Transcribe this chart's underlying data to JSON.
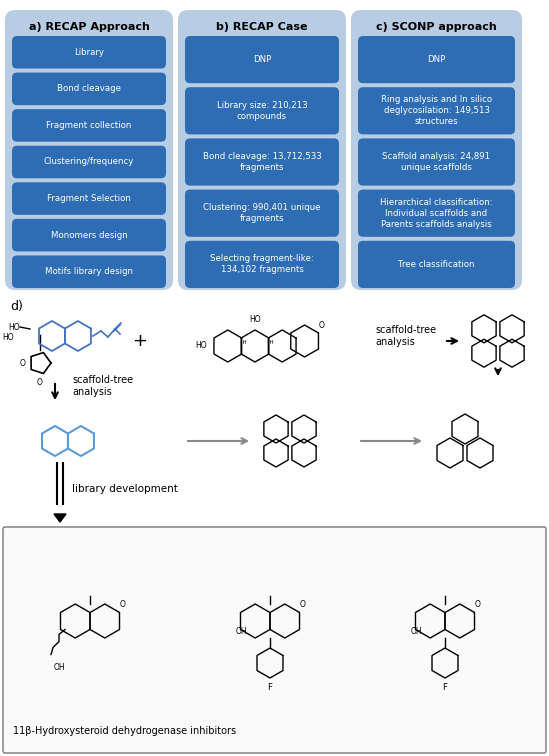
{
  "panel_bg": "#b8cce4",
  "box_bg": "#2e6db4",
  "box_text_color": "#ffffff",
  "panel_title_color": "#000000",
  "fig_bg": "#ffffff",
  "col_a_title": "a) RECAP Approach",
  "col_b_title": "b) RECAP Case",
  "col_c_title": "c) SCONP approach",
  "col_a_items": [
    "Library",
    "Bond cleavage",
    "Fragment collection",
    "Clustering/frequency",
    "Fragment Selection",
    "Monomers design",
    "Motifs library design"
  ],
  "col_b_items": [
    "DNP",
    "Library size: 210,213\ncompounds",
    "Bond cleavage: 13,712,533\nfragments",
    "Clustering: 990,401 unique\nfragments",
    "Selecting fragment-like:\n134,102 fragments"
  ],
  "col_c_items": [
    "DNP",
    "Ring analysis and In silico\ndeglycosilation: 149,513\nstructures",
    "Scaffold analysis: 24,891\nunique scaffolds",
    "Hierarchical classification:\nIndividual scaffolds and\nParents scaffolds analysis",
    "Tree classification"
  ],
  "d_label": "d)",
  "scaffold_tree_label_left": "scaffold-tree\nanalysis",
  "scaffold_tree_label_right": "scaffold-tree\nanalysis",
  "library_dev_label": "library development",
  "inhibitors_label": "11β-Hydroxysteroid dehydrogenase inhibitors"
}
